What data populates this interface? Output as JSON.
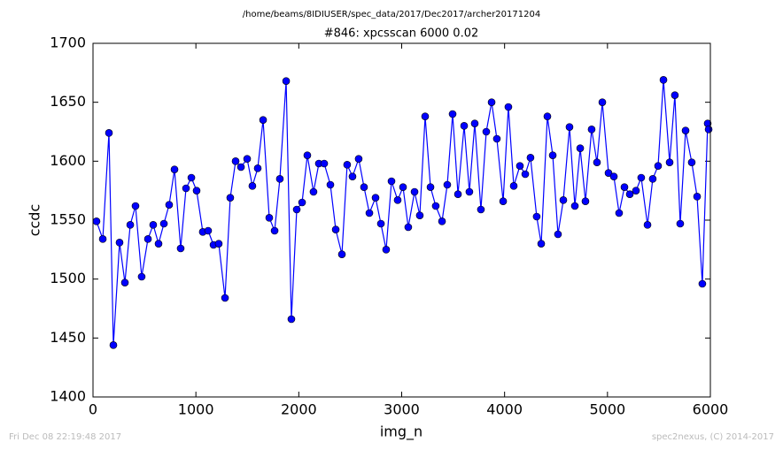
{
  "chart_data": {
    "type": "line",
    "suptitle": "/home/beams/8IDIUSER/spec_data/2017/Dec2017/archer20171204",
    "title": "#846: xpcsscan 6000 0.02",
    "xlabel": "img_n",
    "ylabel": "ccdc",
    "color": "#0000ff",
    "marker": "circle",
    "x": [
      34,
      95,
      155,
      198,
      258,
      310,
      362,
      413,
      473,
      534,
      585,
      637,
      689,
      740,
      792,
      852,
      904,
      956,
      1007,
      1067,
      1119,
      1171,
      1222,
      1283,
      1334,
      1386,
      1438,
      1498,
      1549,
      1601,
      1653,
      1713,
      1765,
      1816,
      1877,
      1928,
      1980,
      2032,
      2083,
      2143,
      2195,
      2247,
      2307,
      2359,
      2419,
      2470,
      2522,
      2582,
      2634,
      2686,
      2746,
      2798,
      2849,
      2901,
      2961,
      3013,
      3064,
      3125,
      3176,
      3228,
      3280,
      3331,
      3392,
      3443,
      3495,
      3547,
      3607,
      3658,
      3710,
      3770,
      3822,
      3874,
      3925,
      3986,
      4037,
      4089,
      4149,
      4201,
      4252,
      4312,
      4356,
      4416,
      4468,
      4519,
      4571,
      4631,
      4683,
      4735,
      4786,
      4846,
      4898,
      4950,
      5010,
      5062,
      5113,
      5165,
      5217,
      5277,
      5328,
      5389,
      5440,
      5492,
      5544,
      5604,
      5655,
      5707,
      5759,
      5819,
      5871,
      5922,
      5974,
      5983
    ],
    "values": [
      1549,
      1534,
      1624,
      1444,
      1531,
      1497,
      1546,
      1562,
      1502,
      1534,
      1546,
      1530,
      1547,
      1563,
      1593,
      1526,
      1577,
      1586,
      1575,
      1540,
      1541,
      1529,
      1530,
      1484,
      1569,
      1600,
      1595,
      1602,
      1579,
      1594,
      1635,
      1552,
      1541,
      1585,
      1668,
      1466,
      1559,
      1565,
      1605,
      1574,
      1598,
      1598,
      1580,
      1542,
      1521,
      1597,
      1587,
      1602,
      1578,
      1556,
      1569,
      1547,
      1525,
      1583,
      1567,
      1578,
      1544,
      1574,
      1554,
      1638,
      1578,
      1562,
      1549,
      1580,
      1640,
      1572,
      1630,
      1574,
      1632,
      1559,
      1625,
      1650,
      1619,
      1566,
      1646,
      1579,
      1596,
      1589,
      1603,
      1553,
      1530,
      1638,
      1605,
      1538,
      1567,
      1629,
      1562,
      1611,
      1566,
      1627,
      1599,
      1650,
      1590,
      1587,
      1556,
      1578,
      1572,
      1575,
      1586,
      1546,
      1585,
      1596,
      1669,
      1599,
      1656,
      1547,
      1626,
      1599,
      1570,
      1496,
      1632,
      1627
    ],
    "xlim": [
      0,
      6000
    ],
    "xticks": [
      0,
      1000,
      2000,
      3000,
      4000,
      5000,
      6000
    ],
    "ylim": [
      1400,
      1700
    ],
    "yticks": [
      1400,
      1450,
      1500,
      1550,
      1600,
      1650,
      1700
    ],
    "grid": false
  },
  "footer": {
    "left": "Fri Dec 08 22:19:48 2017",
    "right": "spec2nexus, (C) 2014-2017"
  }
}
